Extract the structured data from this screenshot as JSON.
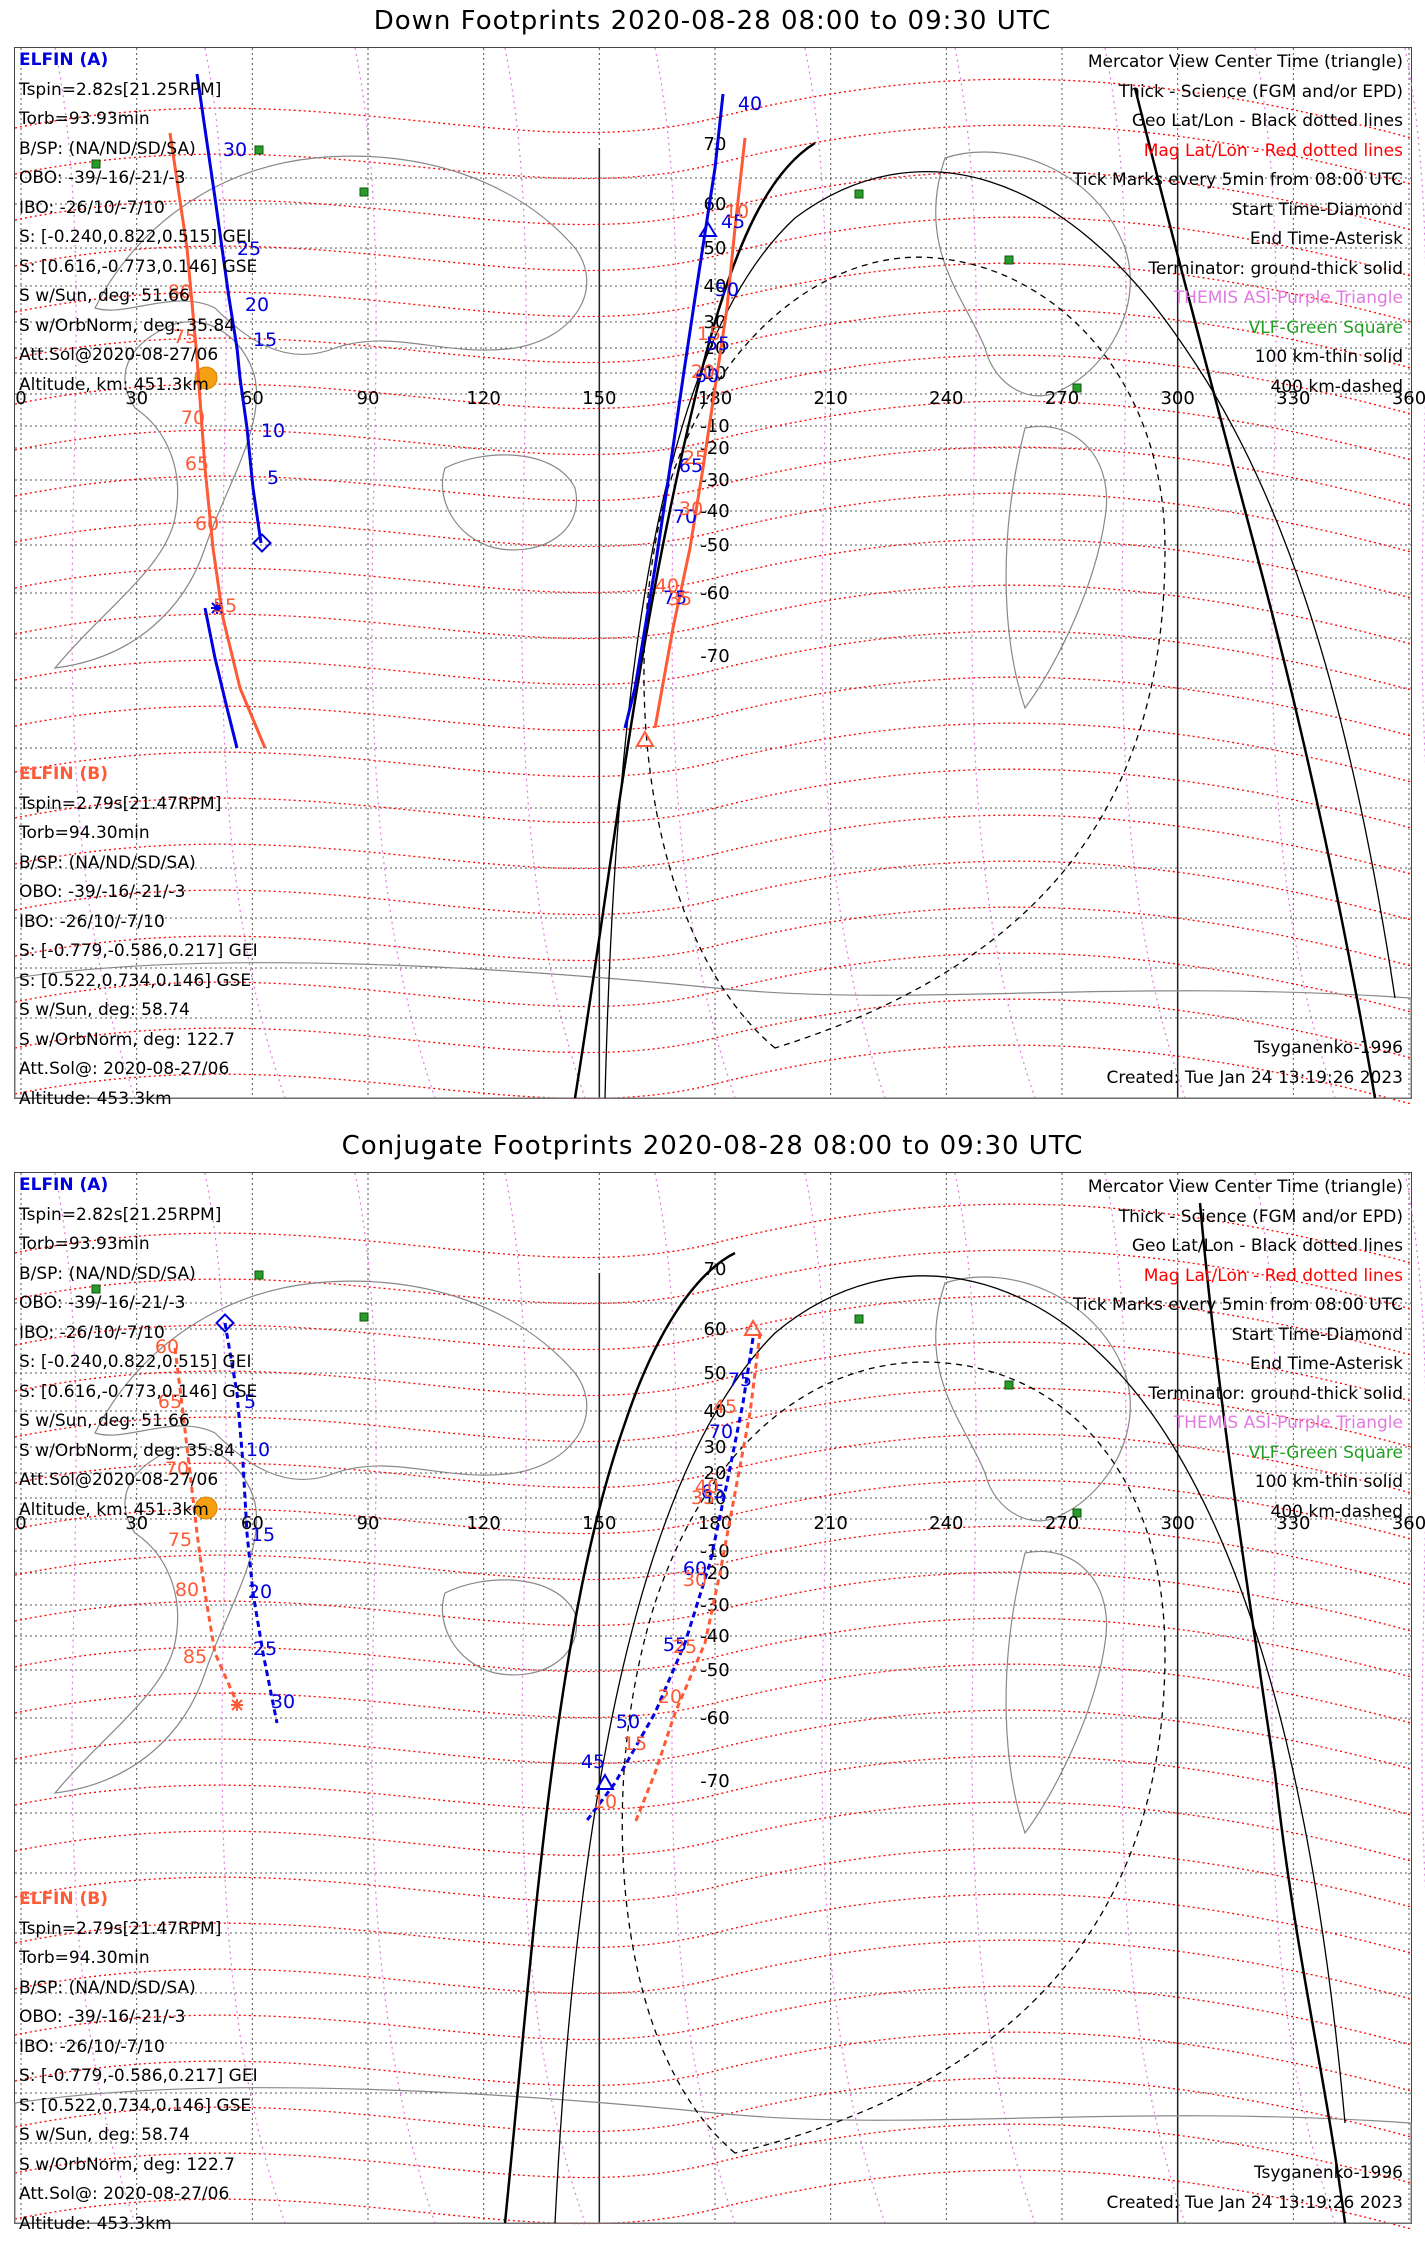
{
  "panels": [
    {
      "title": "Down Footprints 2020-08-28 08:00 to 09:30 UTC",
      "sat_a": {
        "name": "ELFIN (A)",
        "lines": [
          "Tspin=2.82s[21.25RPM]",
          "Torb=93.93min",
          "B/SP: (NA/ND/SD/SA)",
          "OBO: -39/-16/-21/-3",
          "IBO: -26/10/-7/10",
          "S: [-0.240,0.822,0.515] GEI",
          "S: [0.616,-0.773,0.146] GSE",
          "S w/Sun, deg: 51.66",
          "S w/OrbNorm, deg: 35.84",
          "Att.Sol@2020-08-27/06",
          "Altitude, km: 451.3km"
        ]
      },
      "sat_b": {
        "name": "ELFIN (B)",
        "lines": [
          "Tspin=2.79s[21.47RPM]",
          "Torb=94.30min",
          "B/SP: (NA/ND/SD/SA)",
          "OBO: -39/-16/-21/-3",
          "IBO: -26/10/-7/10",
          "S: [-0.779,-0.586,0.217] GEI",
          "S: [0.522,0.734,0.146] GSE",
          "S w/Sun, deg: 58.74",
          "S w/OrbNorm, deg: 122.7",
          "Att.Sol@: 2020-08-27/06",
          "Altitude: 453.3km"
        ]
      },
      "footer_left": "Tsyganenko-1996",
      "footer_right": "Created: Tue Jan 24 13:19:26 2023"
    },
    {
      "title": "Conjugate Footprints 2020-08-28 08:00 to 09:30 UTC",
      "sat_a": {
        "name": "ELFIN (A)",
        "lines": [
          "Tspin=2.82s[21.25RPM]",
          "Torb=93.93min",
          "B/SP: (NA/ND/SD/SA)",
          "OBO: -39/-16/-21/-3",
          "IBO: -26/10/-7/10",
          "S: [-0.240,0.822,0.515] GEI",
          "S: [0.616,-0.773,0.146] GSE",
          "S w/Sun, deg: 51.66",
          "S w/OrbNorm, deg: 35.84",
          "Att.Sol@2020-08-27/06",
          "Altitude, km: 451.3km"
        ]
      },
      "sat_b": {
        "name": "ELFIN (B)",
        "lines": [
          "Tspin=2.79s[21.47RPM]",
          "Torb=94.30min",
          "B/SP: (NA/ND/SD/SA)",
          "OBO: -39/-16/-21/-3",
          "IBO: -26/10/-7/10",
          "S: [-0.779,-0.586,0.217] GEI",
          "S: [0.522,0.734,0.146] GSE",
          "S w/Sun, deg: 58.74",
          "S w/OrbNorm, deg: 122.7",
          "Att.Sol@: 2020-08-27/06",
          "Altitude: 453.3km"
        ]
      },
      "footer_left": "Tsyganenko-1996",
      "footer_right": "Created: Tue Jan 24 13:19:26 2023"
    }
  ],
  "legend": [
    "Mercator View Center Time (triangle)",
    "Thick - Science (FGM and/or EPD)",
    "Geo Lat/Lon - Black dotted lines",
    "Mag Lat/Lon - Red dotted lines",
    "Tick Marks every 5min from 08:00 UTC",
    "Start Time-Diamond",
    "End Time-Asterisk",
    "Terminator: ground-thick solid",
    "THEMIS ASI-Purple Triangle",
    "VLF-Green Square",
    "100 km-thin solid",
    "400 km-dashed"
  ],
  "lon_labels": [
    "0",
    "30",
    "60",
    "90",
    "120",
    "150",
    "180",
    "210",
    "240",
    "270",
    "300",
    "330",
    "360"
  ],
  "lat_labels": [
    "70",
    "60",
    "50",
    "40",
    "30",
    "20",
    "10",
    "-10",
    "-20",
    "-30",
    "-40",
    "-50",
    "-60",
    "-70"
  ],
  "track_labels": {
    "down_a": [
      "30",
      "25",
      "20",
      "15",
      "10",
      "5",
      "40",
      "45",
      "50",
      "55",
      "60",
      "65",
      "70",
      "75"
    ],
    "down_b": [
      "80",
      "75",
      "70",
      "65",
      "60",
      "55",
      "10",
      "15",
      "20",
      "25",
      "30",
      "35",
      "40"
    ],
    "conj_a": [
      "5",
      "10",
      "15",
      "20",
      "25",
      "30",
      "45",
      "50",
      "55",
      "60",
      "65",
      "70",
      "75"
    ],
    "conj_b": [
      "60",
      "65",
      "70",
      "75",
      "80",
      "85",
      "10",
      "15",
      "20",
      "25",
      "30",
      "35",
      "40",
      "45"
    ]
  },
  "colors": {
    "sat_a": "#0000e0",
    "sat_b": "#ff5a36",
    "mag": "#ff0000",
    "asi": "#e07ae0",
    "vlf": "#20a020"
  }
}
